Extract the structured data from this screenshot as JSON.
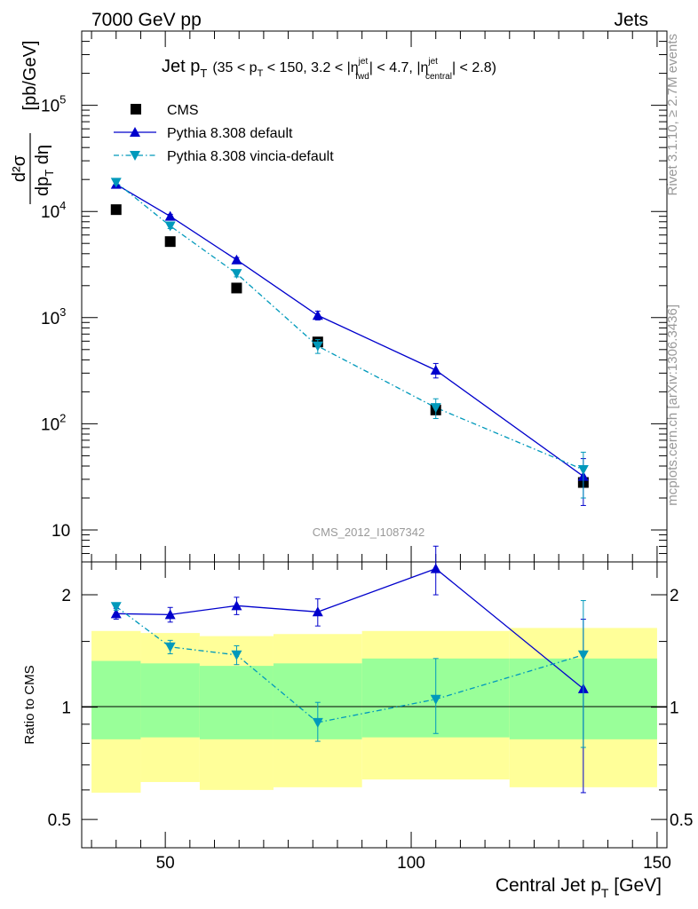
{
  "header": {
    "left": "7000 GeV pp",
    "right": "Jets"
  },
  "side_labels": {
    "rivet": "Rivet 3.1.10, ≥ 2.7M events",
    "source": "mcplots.cern.ch [arXiv:1306.3436]"
  },
  "analysis_id": "CMS_2012_I1087342",
  "colors": {
    "cms": "#000000",
    "pythia_default": "#0000cc",
    "pythia_vincia": "#0099bb",
    "band_inner": "#99ff99",
    "band_outer": "#ffff99"
  },
  "chart_data": [
    {
      "type": "scatter",
      "title": {
        "main": "Jet p",
        "main_sub": "T",
        "cut_parts": [
          "(35 < p",
          "T",
          " < 150, 3.2 < |η",
          "jet",
          "fwd",
          "| < 4.7, |η",
          "jet",
          "central",
          "| < 2.8)"
        ]
      },
      "ylabel": {
        "num": "d²σ",
        "den_pre": "dp",
        "den_sub": "T",
        "den_post": " dη",
        "unit": "[pb/GeV]"
      },
      "yscale": "log",
      "ylim": [
        5,
        500000
      ],
      "xlim": [
        33,
        152
      ],
      "y_ticks": [
        {
          "value": 10,
          "label": "10"
        },
        {
          "value": 100,
          "label": "10",
          "exp": "2"
        },
        {
          "value": 1000,
          "label": "10",
          "exp": "3"
        },
        {
          "value": 10000,
          "label": "10",
          "exp": "4"
        },
        {
          "value": 100000,
          "label": "10",
          "exp": "5"
        }
      ],
      "legend": {
        "placement": "top-left",
        "entries": [
          "CMS",
          "Pythia 8.308 default",
          "Pythia 8.308 vincia-default"
        ]
      },
      "series": [
        {
          "name": "CMS",
          "marker": "square",
          "x": [
            40,
            51,
            64.5,
            81,
            105,
            135
          ],
          "y": [
            10400,
            5200,
            1900,
            590,
            135,
            28
          ]
        },
        {
          "name": "Pythia 8.308 default",
          "marker": "triangle-up",
          "line": "solid",
          "x": [
            40,
            51,
            64.5,
            81,
            105,
            135
          ],
          "y": [
            18000,
            9000,
            3500,
            1050,
            320,
            32
          ],
          "err": [
            800,
            400,
            180,
            100,
            50,
            15
          ]
        },
        {
          "name": "Pythia 8.308 vincia-default",
          "marker": "triangle-down",
          "line": "dashdot",
          "x": [
            40,
            51,
            64.5,
            81,
            105,
            135
          ],
          "y": [
            18800,
            7300,
            2600,
            540,
            142,
            37
          ],
          "err": [
            800,
            400,
            180,
            80,
            30,
            17
          ]
        }
      ]
    },
    {
      "type": "scatter",
      "ylabel": "Ratio to CMS",
      "xlabel": {
        "pre": "Central Jet p",
        "sub": "T",
        "post": " [GeV]"
      },
      "yscale": "log",
      "ylim": [
        0.42,
        2.45
      ],
      "xlim": [
        33,
        152
      ],
      "y_ticks": [
        {
          "value": 0.5,
          "label": "0.5"
        },
        {
          "value": 1,
          "label": "1"
        },
        {
          "value": 2,
          "label": "2"
        }
      ],
      "x_ticks": [
        {
          "value": 50,
          "label": "50"
        },
        {
          "value": 100,
          "label": "100"
        },
        {
          "value": 150,
          "label": "150"
        }
      ],
      "reference_line": 1,
      "bands": {
        "bin_edges": [
          35,
          45,
          57,
          72,
          90,
          120,
          150
        ],
        "outer_low": [
          0.59,
          0.63,
          0.6,
          0.61,
          0.64,
          0.61
        ],
        "outer_high": [
          1.6,
          1.58,
          1.55,
          1.57,
          1.6,
          1.63
        ],
        "inner_low": [
          0.82,
          0.83,
          0.82,
          0.82,
          0.83,
          0.82
        ],
        "inner_high": [
          1.33,
          1.31,
          1.29,
          1.31,
          1.35,
          1.35
        ]
      },
      "series": [
        {
          "name": "Pythia 8.308 default",
          "marker": "triangle-up",
          "line": "solid",
          "x": [
            40,
            51,
            64.5,
            81,
            105,
            135
          ],
          "y": [
            1.78,
            1.77,
            1.87,
            1.8,
            2.35,
            1.12
          ],
          "err_low": [
            0.06,
            0.08,
            0.1,
            0.15,
            0.35,
            0.53
          ],
          "err_high": [
            0.06,
            0.08,
            0.1,
            0.15,
            0.35,
            0.6
          ]
        },
        {
          "name": "Pythia 8.308 vincia-default",
          "marker": "triangle-down",
          "line": "dashdot",
          "x": [
            40,
            51,
            64.5,
            81,
            105,
            135
          ],
          "y": [
            1.86,
            1.45,
            1.38,
            0.91,
            1.05,
            1.38
          ],
          "err_low": [
            0.04,
            0.06,
            0.08,
            0.1,
            0.2,
            0.6
          ],
          "err_high": [
            0.04,
            0.06,
            0.08,
            0.12,
            0.3,
            0.55
          ]
        }
      ]
    }
  ]
}
